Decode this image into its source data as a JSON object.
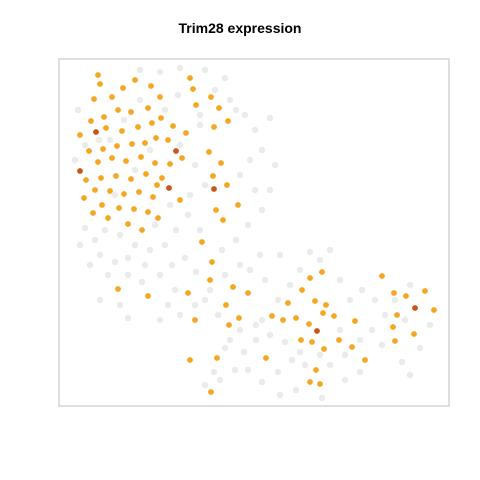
{
  "chart_data": {
    "type": "scatter",
    "title": "Trim28 expression",
    "xlabel": "",
    "ylabel": "",
    "axes_visible": false,
    "grid": false,
    "legend": "none",
    "colors": {
      "background_points": "#ebebeb",
      "expressing_points": "#f5a623",
      "high_expressing_points": "#c8561a",
      "frame": "#bfbfbf"
    },
    "series": [
      {
        "level": "high",
        "color": "#c8561a",
        "points": [
          [
            96,
            132
          ],
          [
            176,
            151
          ],
          [
            80,
            171
          ],
          [
            169,
            188
          ],
          [
            214,
            189
          ],
          [
            317,
            331
          ],
          [
            415,
            308
          ]
        ]
      },
      {
        "level": "expressed",
        "color": "#f5a623",
        "points": [
          [
            98,
            75
          ],
          [
            100,
            84
          ],
          [
            123,
            88
          ],
          [
            112,
            97
          ],
          [
            94,
            99
          ],
          [
            135,
            80
          ],
          [
            151,
            86
          ],
          [
            160,
            97
          ],
          [
            148,
            108
          ],
          [
            131,
            112
          ],
          [
            118,
            110
          ],
          [
            104,
            117
          ],
          [
            91,
            121
          ],
          [
            80,
            135
          ],
          [
            106,
            128
          ],
          [
            122,
            131
          ],
          [
            138,
            127
          ],
          [
            152,
            123
          ],
          [
            161,
            118
          ],
          [
            173,
            126
          ],
          [
            186,
            133
          ],
          [
            168,
            140
          ],
          [
            156,
            138
          ],
          [
            145,
            143
          ],
          [
            132,
            144
          ],
          [
            117,
            146
          ],
          [
            103,
            149
          ],
          [
            89,
            151
          ],
          [
            98,
            162
          ],
          [
            112,
            158
          ],
          [
            126,
            161
          ],
          [
            141,
            157
          ],
          [
            155,
            163
          ],
          [
            170,
            164
          ],
          [
            182,
            158
          ],
          [
            86,
            180
          ],
          [
            101,
            178
          ],
          [
            116,
            176
          ],
          [
            131,
            179
          ],
          [
            146,
            174
          ],
          [
            157,
            185
          ],
          [
            162,
            178
          ],
          [
            95,
            190
          ],
          [
            110,
            191
          ],
          [
            124,
            194
          ],
          [
            139,
            192
          ],
          [
            153,
            197
          ],
          [
            84,
            198
          ],
          [
            102,
            205
          ],
          [
            119,
            208
          ],
          [
            134,
            209
          ],
          [
            148,
            212
          ],
          [
            158,
            218
          ],
          [
            93,
            213
          ],
          [
            108,
            218
          ],
          [
            128,
            224
          ],
          [
            142,
            230
          ],
          [
            180,
            200
          ],
          [
            190,
            78
          ],
          [
            193,
            89
          ],
          [
            211,
            97
          ],
          [
            219,
            108
          ],
          [
            196,
            105
          ],
          [
            214,
            127
          ],
          [
            228,
            121
          ],
          [
            209,
            152
          ],
          [
            221,
            163
          ],
          [
            213,
            176
          ],
          [
            227,
            185
          ],
          [
            238,
            205
          ],
          [
            216,
            210
          ],
          [
            223,
            220
          ],
          [
            202,
            242
          ],
          [
            212,
            262
          ],
          [
            210,
            280
          ],
          [
            233,
            287
          ],
          [
            248,
            293
          ],
          [
            226,
            305
          ],
          [
            239,
            318
          ],
          [
            195,
            320
          ],
          [
            229,
            325
          ],
          [
            188,
            293
          ],
          [
            148,
            296
          ],
          [
            118,
            289
          ],
          [
            190,
            360
          ],
          [
            217,
            358
          ],
          [
            266,
            358
          ],
          [
            211,
            392
          ],
          [
            310,
            278
          ],
          [
            322,
            272
          ],
          [
            302,
            290
          ],
          [
            315,
            301
          ],
          [
            326,
            305
          ],
          [
            288,
            303
          ],
          [
            272,
            316
          ],
          [
            283,
            320
          ],
          [
            296,
            318
          ],
          [
            309,
            324
          ],
          [
            323,
            313
          ],
          [
            334,
            316
          ],
          [
            355,
            321
          ],
          [
            301,
            340
          ],
          [
            312,
            342
          ],
          [
            324,
            349
          ],
          [
            339,
            340
          ],
          [
            352,
            347
          ],
          [
            365,
            360
          ],
          [
            316,
            370
          ],
          [
            320,
            384
          ],
          [
            310,
            382
          ],
          [
            382,
            276
          ],
          [
            394,
            293
          ],
          [
            406,
            296
          ],
          [
            425,
            291
          ],
          [
            434,
            310
          ],
          [
            397,
            315
          ],
          [
            393,
            327
          ],
          [
            414,
            334
          ],
          [
            395,
            341
          ]
        ]
      },
      {
        "level": "background",
        "color": "#ebebeb",
        "points": [
          [
            78,
            110
          ],
          [
            85,
            145
          ],
          [
            99,
            140
          ],
          [
            75,
            160
          ],
          [
            110,
            140
          ],
          [
            124,
            120
          ],
          [
            140,
            100
          ],
          [
            165,
            110
          ],
          [
            178,
            95
          ],
          [
            200,
            115
          ],
          [
            230,
            100
          ],
          [
            245,
            115
          ],
          [
            255,
            130
          ],
          [
            262,
            150
          ],
          [
            250,
            160
          ],
          [
            240,
            175
          ],
          [
            255,
            190
          ],
          [
            262,
            210
          ],
          [
            248,
            225
          ],
          [
            236,
            240
          ],
          [
            222,
            250
          ],
          [
            200,
            230
          ],
          [
            188,
            215
          ],
          [
            176,
            230
          ],
          [
            165,
            245
          ],
          [
            150,
            250
          ],
          [
            135,
            245
          ],
          [
            120,
            235
          ],
          [
            105,
            230
          ],
          [
            95,
            240
          ],
          [
            85,
            228
          ],
          [
            100,
            255
          ],
          [
            115,
            262
          ],
          [
            128,
            275
          ],
          [
            142,
            282
          ],
          [
            160,
            275
          ],
          [
            172,
            265
          ],
          [
            185,
            258
          ],
          [
            196,
            272
          ],
          [
            205,
            300
          ],
          [
            218,
            315
          ],
          [
            230,
            340
          ],
          [
            244,
            352
          ],
          [
            256,
            340
          ],
          [
            262,
            320
          ],
          [
            278,
            300
          ],
          [
            290,
            285
          ],
          [
            300,
            270
          ],
          [
            320,
            260
          ],
          [
            340,
            280
          ],
          [
            350,
            300
          ],
          [
            362,
            290
          ],
          [
            375,
            300
          ],
          [
            385,
            315
          ],
          [
            372,
            330
          ],
          [
            360,
            340
          ],
          [
            345,
            355
          ],
          [
            330,
            365
          ],
          [
            320,
            355
          ],
          [
            305,
            365
          ],
          [
            300,
            352
          ],
          [
            285,
            342
          ],
          [
            270,
            335
          ],
          [
            256,
            325
          ],
          [
            240,
            330
          ],
          [
            225,
            348
          ],
          [
            214,
            372
          ],
          [
            205,
            385
          ],
          [
            220,
            380
          ],
          [
            235,
            370
          ],
          [
            340,
            330
          ],
          [
            382,
            345
          ],
          [
            402,
            362
          ],
          [
            410,
            375
          ],
          [
            420,
            348
          ],
          [
            430,
            325
          ],
          [
            410,
            285
          ],
          [
            395,
            300
          ],
          [
            405,
            320
          ],
          [
            140,
            70
          ],
          [
            160,
            72
          ],
          [
            180,
            68
          ],
          [
            205,
            70
          ],
          [
            225,
            78
          ],
          [
            215,
            90
          ],
          [
            236,
            110
          ],
          [
            200,
            125
          ],
          [
            180,
            145
          ],
          [
            195,
            165
          ],
          [
            205,
            185
          ],
          [
            190,
            195
          ],
          [
            170,
            205
          ],
          [
            155,
            225
          ],
          [
            250,
            270
          ],
          [
            265,
            280
          ],
          [
            280,
            255
          ],
          [
            240,
            265
          ],
          [
            225,
            275
          ],
          [
            210,
            290
          ],
          [
            195,
            305
          ],
          [
            180,
            315
          ],
          [
            168,
            305
          ],
          [
            175,
            290
          ],
          [
            160,
            320
          ],
          [
            248,
            370
          ],
          [
            262,
            382
          ],
          [
            278,
            372
          ],
          [
            292,
            360
          ],
          [
            345,
            380
          ],
          [
            360,
            372
          ],
          [
            322,
            398
          ],
          [
            296,
            390
          ],
          [
            280,
            395
          ],
          [
            120,
            305
          ],
          [
            108,
            275
          ],
          [
            90,
            265
          ],
          [
            80,
            245
          ],
          [
            100,
            300
          ],
          [
            128,
            318
          ],
          [
            270,
            118
          ],
          [
            275,
            165
          ],
          [
            270,
            190
          ],
          [
            135,
            170
          ],
          [
            150,
            150
          ],
          [
            115,
            195
          ],
          [
            128,
            258
          ],
          [
            145,
            265
          ],
          [
            310,
            252
          ],
          [
            330,
            250
          ],
          [
            260,
            255
          ]
        ]
      }
    ]
  }
}
